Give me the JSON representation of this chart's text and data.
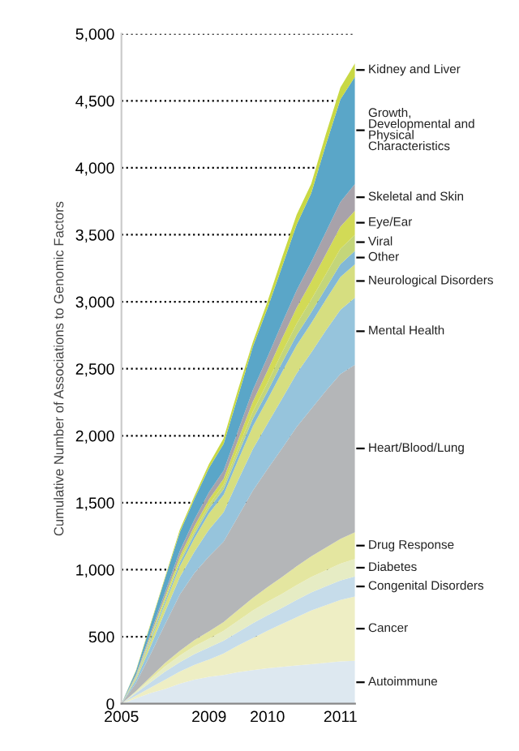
{
  "chart_data": {
    "type": "area",
    "stacked": true,
    "ylabel": "Cumulative Number of Associations to Genomic Factors",
    "categories": [
      "2005",
      null,
      null,
      null,
      null,
      null,
      "2009",
      null,
      null,
      null,
      "2010",
      null,
      null,
      null,
      null,
      "2011",
      null
    ],
    "ylim": [
      0,
      5000
    ],
    "yticks": [
      {
        "value": 0,
        "label": "0"
      },
      {
        "value": 500,
        "label": "500"
      },
      {
        "value": 1000,
        "label": "1,000"
      },
      {
        "value": 1500,
        "label": "1,500"
      },
      {
        "value": 2000,
        "label": "2,000"
      },
      {
        "value": 2500,
        "label": "2,500"
      },
      {
        "value": 3000,
        "label": "3,000"
      },
      {
        "value": 3500,
        "label": "3,500"
      },
      {
        "value": 4000,
        "label": "4,000"
      },
      {
        "value": 4500,
        "label": "4,500"
      },
      {
        "value": 5000,
        "label": "5,000"
      }
    ],
    "grid": "y",
    "legend": false,
    "series": [
      {
        "name": "Autoimmune",
        "color": "#dde8f0",
        "values": [
          0,
          40,
          80,
          110,
          150,
          180,
          200,
          215,
          235,
          250,
          265,
          275,
          285,
          295,
          305,
          315,
          320
        ]
      },
      {
        "name": "Cancer",
        "color": "#eeeec4",
        "values": [
          0,
          20,
          40,
          70,
          90,
          110,
          130,
          160,
          200,
          240,
          280,
          320,
          360,
          400,
          430,
          460,
          480
        ]
      },
      {
        "name": "Congenital Disorders",
        "color": "#c6dcea",
        "values": [
          0,
          20,
          40,
          60,
          70,
          80,
          90,
          95,
          100,
          110,
          115,
          120,
          130,
          135,
          140,
          145,
          150
        ]
      },
      {
        "name": "Diabetes",
        "color": "#e6ecc4",
        "values": [
          0,
          10,
          25,
          40,
          50,
          60,
          65,
          75,
          85,
          95,
          100,
          105,
          110,
          115,
          120,
          125,
          130
        ]
      },
      {
        "name": "Drug Response",
        "color": "#e4e6a0",
        "values": [
          0,
          5,
          15,
          25,
          35,
          45,
          55,
          65,
          80,
          95,
          110,
          125,
          140,
          155,
          170,
          185,
          200
        ]
      },
      {
        "name": "Heart/Blood/Lung",
        "color": "#b4b6b8",
        "values": [
          0,
          60,
          170,
          290,
          420,
          500,
          560,
          600,
          700,
          800,
          880,
          960,
          1040,
          1100,
          1170,
          1230,
          1250
        ]
      },
      {
        "name": "Mental Health",
        "color": "#96c4dc",
        "values": [
          0,
          25,
          60,
          95,
          130,
          160,
          200,
          220,
          270,
          310,
          340,
          370,
          400,
          420,
          450,
          480,
          500
        ]
      },
      {
        "name": "Neurological Disorders",
        "color": "#d6de80",
        "values": [
          0,
          15,
          40,
          60,
          80,
          100,
          120,
          130,
          150,
          170,
          180,
          200,
          210,
          220,
          230,
          245,
          250
        ]
      },
      {
        "name": "Other",
        "color": "#82b8d6",
        "values": [
          0,
          5,
          15,
          20,
          25,
          30,
          35,
          40,
          45,
          55,
          60,
          70,
          75,
          80,
          85,
          95,
          100
        ]
      },
      {
        "name": "Viral",
        "color": "#c4d67a",
        "values": [
          0,
          5,
          10,
          15,
          20,
          25,
          30,
          35,
          45,
          55,
          65,
          75,
          85,
          95,
          105,
          115,
          120
        ]
      },
      {
        "name": "Eye/Ear",
        "color": "#d2da56",
        "values": [
          0,
          5,
          15,
          20,
          30,
          35,
          40,
          45,
          60,
          75,
          90,
          105,
          120,
          135,
          150,
          165,
          180
        ]
      },
      {
        "name": "Skeletal and Skin",
        "color": "#a8a2aa",
        "values": [
          0,
          10,
          20,
          30,
          40,
          50,
          55,
          60,
          70,
          85,
          100,
          115,
          130,
          145,
          165,
          185,
          200
        ]
      },
      {
        "name": "Growth, Developmental and Physical Characteristics",
        "color": "#5aa6c8",
        "values": [
          0,
          25,
          60,
          105,
          140,
          155,
          180,
          200,
          260,
          325,
          365,
          420,
          490,
          515,
          650,
          765,
          800
        ]
      },
      {
        "name": "Kidney and Liver",
        "color": "#c8d844",
        "values": [
          0,
          5,
          10,
          10,
          20,
          20,
          30,
          40,
          50,
          35,
          50,
          70,
          75,
          70,
          80,
          90,
          100
        ]
      }
    ]
  }
}
